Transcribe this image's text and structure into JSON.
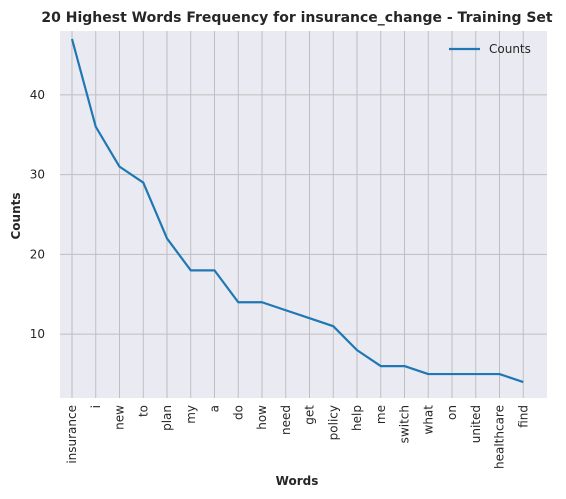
{
  "chart_data": {
    "type": "line",
    "title": "20 Highest Words Frequency for insurance_change - Training Set",
    "xlabel": "Words",
    "ylabel": "Counts",
    "categories": [
      "insurance",
      "i",
      "new",
      "to",
      "plan",
      "my",
      "a",
      "do",
      "how",
      "need",
      "get",
      "policy",
      "help",
      "me",
      "switch",
      "what",
      "on",
      "united",
      "healthcare",
      "find"
    ],
    "series": [
      {
        "name": "Counts",
        "values": [
          47,
          36,
          31,
          29,
          22,
          18,
          18,
          14,
          14,
          13,
          12,
          11,
          8,
          6,
          6,
          5,
          5,
          5,
          5,
          4
        ],
        "color": "#1f77b4"
      }
    ],
    "ylim": [
      2,
      48
    ],
    "yticks": [
      10,
      20,
      30,
      40
    ],
    "grid": true,
    "legend_position": "top-right",
    "background_color": "#eaeaf2",
    "grid_color": "#bfbfbf"
  }
}
